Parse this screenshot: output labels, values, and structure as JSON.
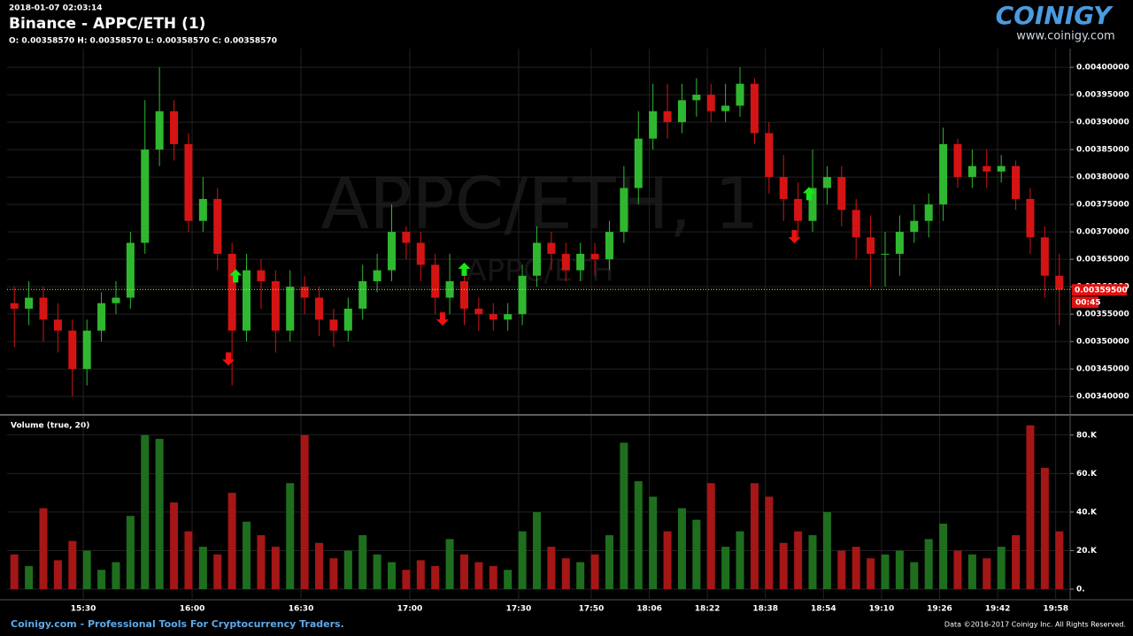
{
  "chart_data": {
    "type": "candlestick",
    "timestamp": "2018-01-07 02:03:14",
    "title": "Binance - APPC/ETH (1)",
    "subtitle": "O: 0.00358570 H: 0.00358570 L: 0.00358570 C: 0.00358570",
    "watermark": "APPC/ETH, 1",
    "watermark_sub": "APPC/ETH",
    "volume_title": "Volume (true, 20)",
    "up_color": "#2fb82f",
    "down_color": "#d41414",
    "volume_up_color": "#1e6e1e",
    "volume_down_color": "#a51616",
    "grid": true,
    "x": [
      911,
      915,
      919,
      923,
      927,
      931,
      935,
      939,
      943,
      947,
      951,
      955,
      959,
      963,
      967,
      971,
      975,
      979,
      983,
      987,
      991,
      995,
      999,
      1003,
      1007,
      1011,
      1015,
      1019,
      1023,
      1027,
      1031,
      1035,
      1039,
      1043,
      1047,
      1051,
      1055,
      1059,
      1063,
      1067,
      1071,
      1075,
      1079,
      1083,
      1087,
      1091,
      1095,
      1099,
      1103,
      1107,
      1111,
      1115,
      1119,
      1123,
      1127,
      1131,
      1135,
      1139,
      1143,
      1147,
      1151,
      1155,
      1159,
      1163,
      1167,
      1171,
      1175,
      1179,
      1183,
      1187,
      1191,
      1195,
      1199
    ],
    "open": [
      0.00357,
      0.00356,
      0.00358,
      0.00354,
      0.00352,
      0.00345,
      0.00352,
      0.00357,
      0.00358,
      0.00368,
      0.00385,
      0.00392,
      0.00386,
      0.00372,
      0.00376,
      0.00366,
      0.00352,
      0.00363,
      0.00361,
      0.00352,
      0.0036,
      0.00358,
      0.00354,
      0.00352,
      0.00356,
      0.00361,
      0.00363,
      0.0037,
      0.00368,
      0.00364,
      0.00358,
      0.00361,
      0.00356,
      0.00355,
      0.00354,
      0.00355,
      0.00362,
      0.00368,
      0.00366,
      0.00363,
      0.00366,
      0.00365,
      0.0037,
      0.00378,
      0.00387,
      0.00392,
      0.0039,
      0.00394,
      0.00395,
      0.00392,
      0.00393,
      0.00397,
      0.00388,
      0.0038,
      0.00376,
      0.00372,
      0.00378,
      0.0038,
      0.00374,
      0.00369,
      0.00366,
      0.00366,
      0.0037,
      0.00372,
      0.00375,
      0.00386,
      0.0038,
      0.00382,
      0.00381,
      0.00382,
      0.00376,
      0.00369,
      0.00362
    ],
    "high": [
      0.0036,
      0.00361,
      0.0036,
      0.00357,
      0.00354,
      0.00354,
      0.00359,
      0.00361,
      0.0037,
      0.00394,
      0.004,
      0.00394,
      0.00388,
      0.0038,
      0.00378,
      0.00368,
      0.00366,
      0.00365,
      0.00363,
      0.00363,
      0.00362,
      0.0036,
      0.00356,
      0.00358,
      0.00364,
      0.00366,
      0.00375,
      0.00371,
      0.0037,
      0.00366,
      0.00366,
      0.00363,
      0.00358,
      0.00357,
      0.00357,
      0.00364,
      0.00371,
      0.0037,
      0.00368,
      0.00368,
      0.00368,
      0.00372,
      0.00382,
      0.00392,
      0.00397,
      0.00397,
      0.00397,
      0.00398,
      0.00397,
      0.00397,
      0.004,
      0.00398,
      0.0039,
      0.00384,
      0.00379,
      0.00385,
      0.00382,
      0.00382,
      0.00376,
      0.00373,
      0.0037,
      0.00373,
      0.00375,
      0.00377,
      0.00389,
      0.00387,
      0.00385,
      0.00385,
      0.00384,
      0.00383,
      0.00378,
      0.00371,
      0.00366
    ],
    "low": [
      0.00349,
      0.00353,
      0.0035,
      0.00348,
      0.0034,
      0.00342,
      0.0035,
      0.00355,
      0.00356,
      0.00366,
      0.00382,
      0.00383,
      0.0037,
      0.0037,
      0.00363,
      0.00342,
      0.0035,
      0.00356,
      0.00348,
      0.0035,
      0.00355,
      0.00351,
      0.00349,
      0.0035,
      0.00354,
      0.00359,
      0.00361,
      0.00365,
      0.00361,
      0.00355,
      0.00355,
      0.00353,
      0.00352,
      0.00352,
      0.00352,
      0.00353,
      0.0036,
      0.00363,
      0.00361,
      0.00361,
      0.00362,
      0.00363,
      0.00368,
      0.00375,
      0.00385,
      0.00387,
      0.00388,
      0.00391,
      0.0039,
      0.0039,
      0.00391,
      0.00386,
      0.00377,
      0.00372,
      0.00369,
      0.0037,
      0.00375,
      0.00371,
      0.00365,
      0.0036,
      0.0036,
      0.00362,
      0.00368,
      0.00369,
      0.00372,
      0.00378,
      0.00378,
      0.00378,
      0.00379,
      0.00374,
      0.00366,
      0.00358,
      0.00353
    ],
    "close": [
      0.00356,
      0.00358,
      0.00354,
      0.00352,
      0.00345,
      0.00352,
      0.00357,
      0.00358,
      0.00368,
      0.00385,
      0.00392,
      0.00386,
      0.00372,
      0.00376,
      0.00366,
      0.00352,
      0.00363,
      0.00361,
      0.00352,
      0.0036,
      0.00358,
      0.00354,
      0.00352,
      0.00356,
      0.00361,
      0.00363,
      0.0037,
      0.00368,
      0.00364,
      0.00358,
      0.00361,
      0.00356,
      0.00355,
      0.00354,
      0.00355,
      0.00362,
      0.00368,
      0.00366,
      0.00363,
      0.00366,
      0.00365,
      0.0037,
      0.00378,
      0.00387,
      0.00392,
      0.0039,
      0.00394,
      0.00395,
      0.00392,
      0.00393,
      0.00397,
      0.00388,
      0.0038,
      0.00376,
      0.00372,
      0.00378,
      0.0038,
      0.00374,
      0.00369,
      0.00366,
      0.00366,
      0.0037,
      0.00372,
      0.00375,
      0.00386,
      0.0038,
      0.00382,
      0.00381,
      0.00382,
      0.00376,
      0.00369,
      0.00362,
      0.003595
    ],
    "volume": [
      18000,
      12000,
      42000,
      15000,
      25000,
      20000,
      10000,
      14000,
      38000,
      80000,
      78000,
      45000,
      30000,
      22000,
      18000,
      50000,
      35000,
      28000,
      22000,
      55000,
      80000,
      24000,
      16000,
      20000,
      28000,
      18000,
      14000,
      10000,
      15000,
      12000,
      26000,
      18000,
      14000,
      12000,
      10000,
      30000,
      40000,
      22000,
      16000,
      14000,
      18000,
      28000,
      76000,
      56000,
      48000,
      30000,
      42000,
      36000,
      55000,
      22000,
      30000,
      55000,
      48000,
      24000,
      30000,
      28000,
      40000,
      20000,
      22000,
      16000,
      18000,
      20000,
      14000,
      26000,
      34000,
      20000,
      18000,
      16000,
      22000,
      28000,
      85000,
      63000,
      30000
    ],
    "xlim": [
      909,
      1201.5
    ],
    "xticks": [
      {
        "value": 930,
        "label": "15:30"
      },
      {
        "value": 960,
        "label": "16:00"
      },
      {
        "value": 990,
        "label": "16:30"
      },
      {
        "value": 1020,
        "label": "17:00"
      },
      {
        "value": 1050,
        "label": "17:30"
      },
      {
        "value": 1070,
        "label": "17:50"
      },
      {
        "value": 1086,
        "label": "18:06"
      },
      {
        "value": 1102,
        "label": "18:22"
      },
      {
        "value": 1118,
        "label": "18:38"
      },
      {
        "value": 1134,
        "label": "18:54"
      },
      {
        "value": 1150,
        "label": "19:10"
      },
      {
        "value": 1166,
        "label": "19:26"
      },
      {
        "value": 1182,
        "label": "19:42"
      },
      {
        "value": 1198,
        "label": "19:58"
      }
    ],
    "ylim": [
      0.003368,
      0.004034
    ],
    "yticks": [
      {
        "value": 0.0034,
        "label": "0.00340000"
      },
      {
        "value": 0.00345,
        "label": "0.00345000"
      },
      {
        "value": 0.0035,
        "label": "0.00350000"
      },
      {
        "value": 0.00355,
        "label": "0.00355000"
      },
      {
        "value": 0.0036,
        "label": "0.00360000"
      },
      {
        "value": 0.00365,
        "label": "0.00365000"
      },
      {
        "value": 0.0037,
        "label": "0.00370000"
      },
      {
        "value": 0.00375,
        "label": "0.00375000"
      },
      {
        "value": 0.0038,
        "label": "0.00380000"
      },
      {
        "value": 0.00385,
        "label": "0.00385000"
      },
      {
        "value": 0.0039,
        "label": "0.00390000"
      },
      {
        "value": 0.00395,
        "label": "0.00395000"
      },
      {
        "value": 0.004,
        "label": "0.00400000"
      }
    ],
    "volume_ylim": [
      -5500,
      90000
    ],
    "volume_ticks": [
      {
        "value": 0,
        "label": "0."
      },
      {
        "value": 20000,
        "label": "20.K"
      },
      {
        "value": 40000,
        "label": "40.K"
      },
      {
        "value": 60000,
        "label": "60.K"
      },
      {
        "value": 80000,
        "label": "80.K"
      }
    ],
    "last_price": {
      "value": 0.003595,
      "label": "0.00359500"
    },
    "countdown": "00:45",
    "buy_signals": {
      "color": "#19e619",
      "x": [
        972,
        1035,
        1130
      ],
      "y": [
        0.003619,
        0.003631,
        0.003769
      ]
    },
    "sell_signals": {
      "color": "#ee1111",
      "x": [
        970,
        1029,
        1126
      ],
      "y": [
        0.003469,
        0.003542,
        0.003692
      ]
    }
  },
  "branding": {
    "logo": "COINIGY",
    "url": "www.coinigy.com",
    "footer_left": "Coinigy.com - Professional Tools For Cryptocurrency Traders.",
    "footer_right": "Data ©2016-2017 Coinigy Inc. All Rights Reserved."
  }
}
